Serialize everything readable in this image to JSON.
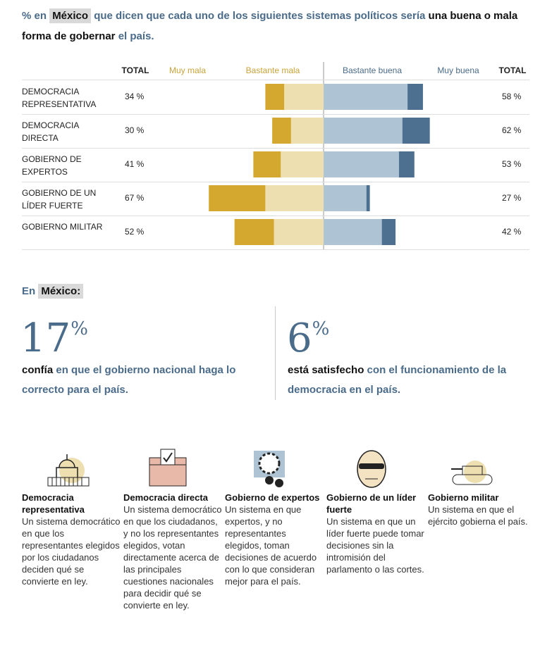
{
  "chart_data": {
    "type": "diverging_bar",
    "title_parts": [
      "% en ",
      "México",
      " que dicen que cada uno de los siguientes sistemas políticos sería ",
      "una buena o mala forma de gobernar",
      " el país."
    ],
    "categories": [
      "DEMOCRACIA REPRESENTATIVA",
      "DEMOCRACIA DIRECTA",
      "GOBIERNO DE EXPERTOS",
      "GOBIERNO DE UN LÍDER FUERTE",
      "GOBIERNO MILITAR"
    ],
    "series": [
      {
        "name": "Muy mala",
        "color": "#d4a82f",
        "values": [
          11,
          11,
          16,
          33,
          23
        ]
      },
      {
        "name": "Bastante mala",
        "color": "#eedfb0",
        "values": [
          23,
          19,
          25,
          34,
          29
        ]
      },
      {
        "name": "Bastante buena",
        "color": "#aec4d4",
        "values": [
          49,
          46,
          44,
          25,
          34
        ]
      },
      {
        "name": "Muy buena",
        "color": "#4d7090",
        "values": [
          9,
          16,
          9,
          2,
          8
        ]
      }
    ],
    "totals": [
      {
        "name": "TOTAL",
        "values": [
          34,
          30,
          41,
          67,
          52
        ],
        "value_labels": [
          "34 %",
          "30 %",
          "41 %",
          "67 %",
          "52 %"
        ]
      },
      {
        "name": "TOTAL",
        "values": [
          58,
          62,
          53,
          27,
          42
        ],
        "value_labels": [
          "58 %",
          "62 %",
          "53 %",
          "27 %",
          "42 %"
        ]
      }
    ]
  },
  "stats": {
    "label_parts": [
      "En",
      "México:"
    ],
    "items": [
      {
        "value": 17,
        "unit": "%",
        "text_parts": [
          "confía",
          " en que el gobierno nacional haga lo correcto para el país."
        ]
      },
      {
        "value": 6,
        "unit": "%",
        "text_parts": [
          "está satisfecho",
          " con el funcionamiento de la democracia en el país."
        ]
      }
    ]
  },
  "definitions": [
    {
      "title": "Democracia representativa",
      "text": "Un sistema democrático en que los representantes elegidos por los ciudadanos deciden qué se convierte en ley."
    },
    {
      "title": "Democracia directa",
      "text": "Un sistema democrático en que los ciudadanos, y no los representantes elegidos, votan directamente acerca de las principales cuestiones nacionales para decidir qué se convierte en ley."
    },
    {
      "title": "Gobierno de expertos",
      "text": "Un sistema en que expertos, y no representantes elegidos, toman decisiones de acuerdo con lo que consideran mejor para el país."
    },
    {
      "title": "Gobierno de un líder fuerte",
      "text": "Un sistema en que un líder fuerte puede tomar decisiones sin la intromisión del parlamento o las cortes."
    },
    {
      "title": "Gobierno militar",
      "text": "Un sistema en que el ejército gobierna el país."
    }
  ]
}
